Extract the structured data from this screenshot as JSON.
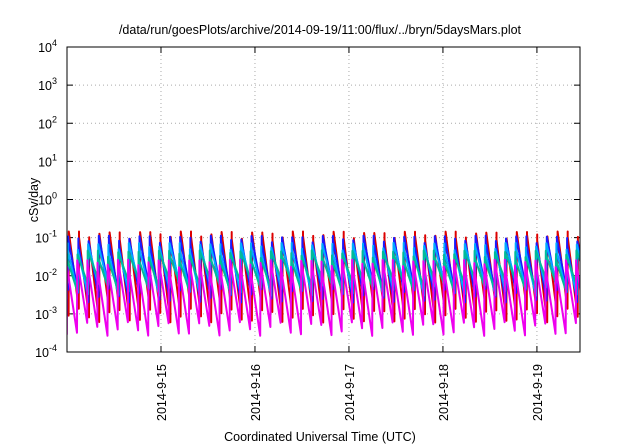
{
  "chart_data": {
    "type": "line",
    "title": "/data/run/goesPlots/archive/2014-09-19/11:00/flux/../bryn/5daysMars.plot",
    "xlabel": "Coordinated Universal Time (UTC)",
    "ylabel": "cSv/day",
    "yscale": "log",
    "ylim": [
      0.0001,
      10000
    ],
    "xlim": [
      "2014-09-14 00:00",
      "2014-09-19 11:00"
    ],
    "grid": true,
    "y_ticks": [
      {
        "base": "10",
        "exp": "-4"
      },
      {
        "base": "10",
        "exp": "-3"
      },
      {
        "base": "10",
        "exp": "-2"
      },
      {
        "base": "10",
        "exp": "-1"
      },
      {
        "base": "10",
        "exp": "0"
      },
      {
        "base": "10",
        "exp": "1"
      },
      {
        "base": "10",
        "exp": "2"
      },
      {
        "base": "10",
        "exp": "3"
      },
      {
        "base": "10",
        "exp": "4"
      }
    ],
    "x_ticks": [
      "2014-9-15",
      "2014-9-16",
      "2014-9-17",
      "2014-9-18",
      "2014-9-19"
    ],
    "sawtooth_period_hours": 2.6,
    "series": [
      {
        "color": "#dd0000",
        "peak": 0.11,
        "trough": 0.0009,
        "phase": 0.18
      },
      {
        "color": "#1a1aff",
        "peak": 0.085,
        "trough": 0.003,
        "phase": 0.12
      },
      {
        "color": "#00aaff",
        "peak": 0.055,
        "trough": 0.0045,
        "phase": 0.07
      },
      {
        "color": "#00bb99",
        "peak": 0.035,
        "trough": 0.006,
        "phase": 0.03
      },
      {
        "color": "#ee00ee",
        "peak": 0.02,
        "trough": 0.0004,
        "phase": 0.0
      }
    ]
  }
}
